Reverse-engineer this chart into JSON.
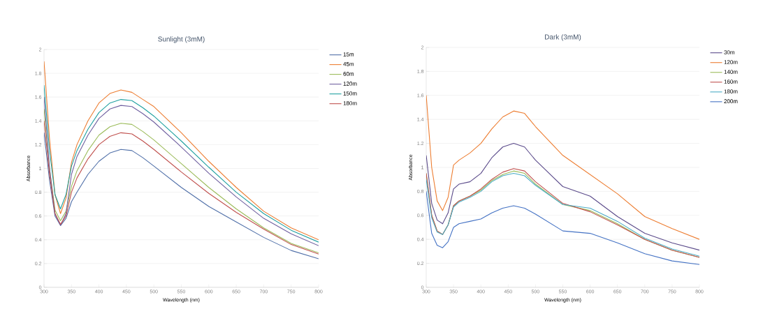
{
  "chart_data": [
    {
      "type": "line",
      "title": "Sunlight (3mM)",
      "xlabel": "Wavelength (nm)",
      "ylabel": "Absorbance",
      "grid": "y",
      "legend": "top right",
      "x": [
        300,
        310,
        320,
        330,
        340,
        350,
        360,
        380,
        400,
        420,
        440,
        460,
        480,
        500,
        550,
        600,
        650,
        700,
        750,
        800
      ],
      "xlim": [
        300,
        800
      ],
      "xticks": [
        300,
        350,
        400,
        450,
        500,
        550,
        600,
        650,
        700,
        750,
        800
      ],
      "ylim": [
        0,
        2
      ],
      "yticks": [
        0,
        0.2,
        0.4,
        0.6,
        0.8,
        1,
        1.2,
        1.4,
        1.6,
        1.8,
        2
      ],
      "series": [
        {
          "name": "15m",
          "color": "#4f6fa8",
          "values": [
            1.3,
            0.9,
            0.6,
            0.52,
            0.58,
            0.72,
            0.8,
            0.95,
            1.06,
            1.13,
            1.16,
            1.15,
            1.09,
            1.02,
            0.84,
            0.68,
            0.55,
            0.42,
            0.31,
            0.24
          ]
        },
        {
          "name": "45m",
          "color": "#ed7d31",
          "values": [
            1.9,
            1.25,
            0.78,
            0.62,
            0.75,
            1.05,
            1.2,
            1.4,
            1.55,
            1.63,
            1.66,
            1.64,
            1.58,
            1.52,
            1.3,
            1.06,
            0.84,
            0.64,
            0.5,
            0.4
          ]
        },
        {
          "name": "60m",
          "color": "#9bbb59",
          "values": [
            1.5,
            1.0,
            0.65,
            0.56,
            0.64,
            0.85,
            0.98,
            1.15,
            1.28,
            1.35,
            1.38,
            1.37,
            1.31,
            1.24,
            1.04,
            0.84,
            0.66,
            0.5,
            0.37,
            0.29
          ]
        },
        {
          "name": "120m",
          "color": "#7060a0",
          "values": [
            1.6,
            1.0,
            0.62,
            0.52,
            0.62,
            0.95,
            1.1,
            1.28,
            1.42,
            1.5,
            1.53,
            1.52,
            1.46,
            1.39,
            1.18,
            0.96,
            0.76,
            0.58,
            0.45,
            0.35
          ]
        },
        {
          "name": "150m",
          "color": "#1fa0a0",
          "values": [
            1.7,
            1.15,
            0.78,
            0.66,
            0.78,
            1.02,
            1.15,
            1.33,
            1.47,
            1.55,
            1.58,
            1.57,
            1.51,
            1.44,
            1.23,
            1.01,
            0.8,
            0.62,
            0.48,
            0.38
          ]
        },
        {
          "name": "180m",
          "color": "#c0504d",
          "values": [
            1.4,
            0.95,
            0.62,
            0.53,
            0.6,
            0.8,
            0.92,
            1.08,
            1.2,
            1.27,
            1.3,
            1.29,
            1.23,
            1.16,
            0.97,
            0.79,
            0.63,
            0.49,
            0.36,
            0.28
          ]
        }
      ]
    },
    {
      "type": "line",
      "title": "Dark (3mM)",
      "xlabel": "Wavelength (nm)",
      "ylabel": "Absorbance",
      "grid": "y",
      "legend": "top right",
      "x": [
        300,
        310,
        320,
        330,
        340,
        350,
        360,
        380,
        400,
        420,
        440,
        460,
        480,
        500,
        550,
        600,
        650,
        700,
        750,
        800
      ],
      "xlim": [
        300,
        800
      ],
      "xticks": [
        300,
        350,
        400,
        450,
        500,
        550,
        600,
        650,
        700,
        750,
        800
      ],
      "ylim": [
        0,
        2
      ],
      "yticks": [
        0,
        0.2,
        0.4,
        0.6,
        0.8,
        1,
        1.2,
        1.4,
        1.6,
        1.8,
        2
      ],
      "series": [
        {
          "name": "30m",
          "color": "#5a4a8a",
          "values": [
            1.1,
            0.7,
            0.56,
            0.53,
            0.62,
            0.82,
            0.86,
            0.88,
            0.95,
            1.08,
            1.17,
            1.2,
            1.17,
            1.06,
            0.84,
            0.76,
            0.59,
            0.45,
            0.37,
            0.31
          ]
        },
        {
          "name": "120m",
          "color": "#ed7d31",
          "values": [
            1.6,
            1.0,
            0.72,
            0.64,
            0.75,
            1.02,
            1.06,
            1.12,
            1.2,
            1.32,
            1.42,
            1.47,
            1.45,
            1.34,
            1.1,
            0.94,
            0.78,
            0.59,
            0.49,
            0.4
          ]
        },
        {
          "name": "140m",
          "color": "#9bbb59",
          "values": [
            0.95,
            0.6,
            0.47,
            0.44,
            0.52,
            0.68,
            0.72,
            0.76,
            0.81,
            0.89,
            0.94,
            0.97,
            0.95,
            0.86,
            0.69,
            0.64,
            0.53,
            0.4,
            0.31,
            0.25
          ]
        },
        {
          "name": "160m",
          "color": "#c0504d",
          "values": [
            0.95,
            0.6,
            0.47,
            0.44,
            0.52,
            0.68,
            0.72,
            0.76,
            0.82,
            0.9,
            0.96,
            0.99,
            0.97,
            0.88,
            0.7,
            0.63,
            0.52,
            0.4,
            0.31,
            0.25
          ]
        },
        {
          "name": "180m",
          "color": "#4bacc6",
          "values": [
            0.9,
            0.58,
            0.46,
            0.44,
            0.52,
            0.67,
            0.71,
            0.75,
            0.8,
            0.88,
            0.93,
            0.95,
            0.93,
            0.85,
            0.69,
            0.66,
            0.55,
            0.41,
            0.32,
            0.26
          ]
        },
        {
          "name": "200m",
          "color": "#4472c4",
          "values": [
            0.8,
            0.45,
            0.35,
            0.33,
            0.38,
            0.5,
            0.53,
            0.55,
            0.57,
            0.62,
            0.66,
            0.68,
            0.66,
            0.61,
            0.47,
            0.45,
            0.37,
            0.28,
            0.22,
            0.19
          ]
        }
      ]
    }
  ]
}
